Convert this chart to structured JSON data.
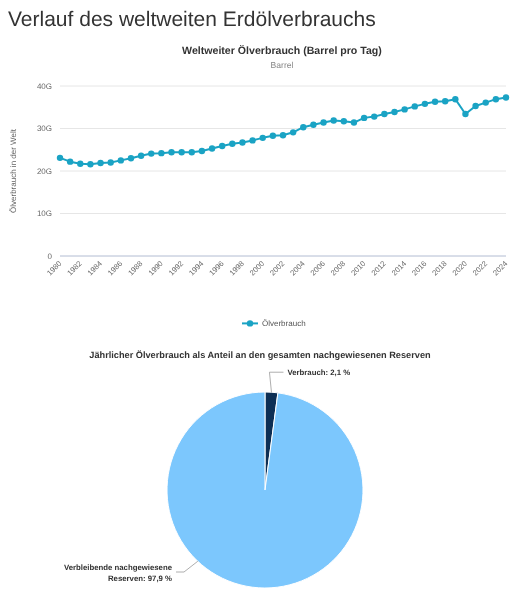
{
  "chart_data": [
    {
      "type": "line",
      "title": "Weltweiter Ölverbrauch (Barrel pro Tag)",
      "subtitle": "Barrel",
      "ylabel": "Ölverbrauch in der Welt",
      "annotations": [
        "Verlauf des weltweiten Erdölverbrauchs"
      ],
      "x": [
        1980,
        1981,
        1982,
        1983,
        1984,
        1985,
        1986,
        1987,
        1988,
        1989,
        1990,
        1991,
        1992,
        1993,
        1994,
        1995,
        1996,
        1997,
        1998,
        1999,
        2000,
        2001,
        2002,
        2003,
        2004,
        2005,
        2006,
        2007,
        2008,
        2009,
        2010,
        2011,
        2012,
        2013,
        2014,
        2015,
        2016,
        2017,
        2018,
        2019,
        2020,
        2021,
        2022,
        2023,
        2024
      ],
      "series": [
        {
          "name": "Ölverbrauch",
          "color": "#1aa3c4",
          "values": [
            23.1,
            22.2,
            21.7,
            21.6,
            21.9,
            22.0,
            22.5,
            23.0,
            23.6,
            24.1,
            24.2,
            24.4,
            24.4,
            24.4,
            24.7,
            25.3,
            25.9,
            26.4,
            26.7,
            27.2,
            27.8,
            28.3,
            28.4,
            29.1,
            30.3,
            30.9,
            31.4,
            31.9,
            31.7,
            31.4,
            32.5,
            32.8,
            33.4,
            33.9,
            34.5,
            35.2,
            35.8,
            36.3,
            36.4,
            36.9,
            33.4,
            35.3,
            36.1,
            36.9,
            37.3
          ]
        }
      ],
      "xlim": [
        1980,
        2024
      ],
      "xticks": [
        1980,
        1982,
        1984,
        1986,
        1988,
        1990,
        1992,
        1994,
        1996,
        1998,
        2000,
        2002,
        2004,
        2006,
        2008,
        2010,
        2012,
        2014,
        2016,
        2018,
        2020,
        2022,
        2024
      ],
      "ylim": [
        0,
        40
      ],
      "yticks": [
        {
          "value": 0,
          "label": "0"
        },
        {
          "value": 10,
          "label": "10G"
        },
        {
          "value": 20,
          "label": "20G"
        },
        {
          "value": 30,
          "label": "30G"
        },
        {
          "value": 40,
          "label": "40G"
        }
      ],
      "grid": "y",
      "legend": "bottom",
      "marker": "circle",
      "line_style": "solid"
    },
    {
      "type": "pie",
      "title": "Jährlicher Ölverbrauch als Anteil an den gesamten nachgewiesenen Reserven",
      "categories": [
        "Verbrauch",
        "Verbleibende nachgewiesene Reserven"
      ],
      "values": [
        2.1,
        97.9
      ],
      "colors": [
        "#0d2f55",
        "#7cc7fd"
      ],
      "value_labels": [
        "2,1 %",
        "97,9 %"
      ]
    }
  ]
}
